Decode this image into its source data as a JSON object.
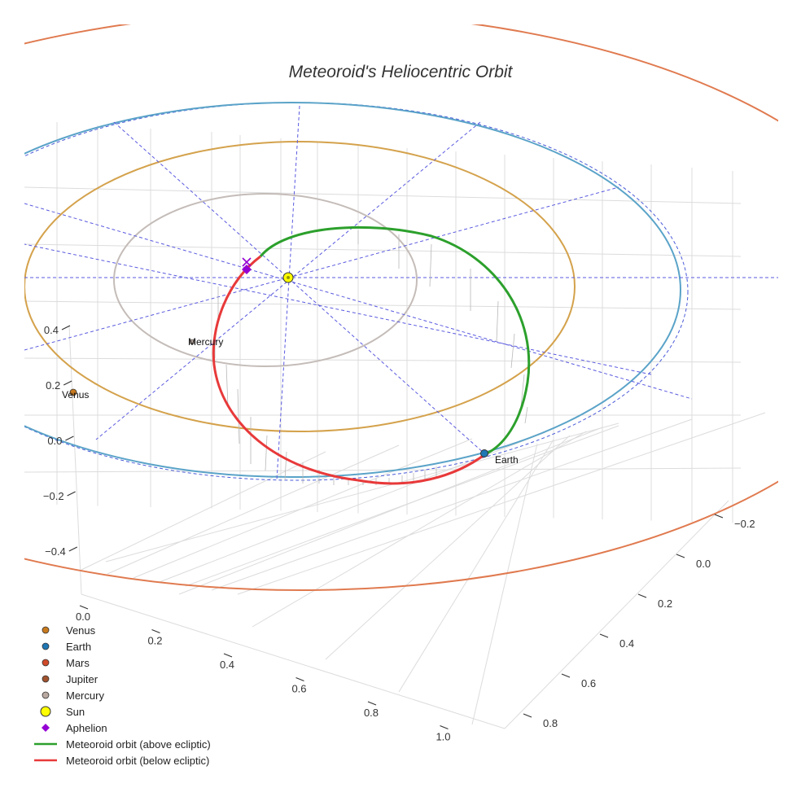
{
  "chart_data": {
    "type": "line",
    "title": "Meteoroid's Heliocentric Orbit",
    "axes": {
      "x_ticks": [
        "0.0",
        "0.2",
        "0.4",
        "0.6",
        "0.8",
        "1.0"
      ],
      "y_ticks": [
        "−0.2",
        "0.0",
        "0.2",
        "0.4",
        "0.6",
        "0.8"
      ],
      "z_ticks": [
        "0.4",
        "0.2",
        "0.0",
        "−0.2",
        "−0.4"
      ],
      "grid": true
    },
    "planet_orbits": [
      {
        "name": "Mercury",
        "semi_major_axis_au": 0.387,
        "color": "#c4bcb8"
      },
      {
        "name": "Venus",
        "semi_major_axis_au": 0.723,
        "color": "#d4a24c"
      },
      {
        "name": "Earth",
        "semi_major_axis_au": 1.0,
        "color": "#5aa3c8"
      },
      {
        "name": "Mars",
        "semi_major_axis_au": 1.524,
        "color": "#e07a4f"
      }
    ],
    "series": [
      {
        "name": "Meteoroid orbit (above ecliptic)",
        "color": "#2ca02c"
      },
      {
        "name": "Meteoroid orbit (below ecliptic)",
        "color": "#e8393a"
      }
    ],
    "labels": {
      "mercury": "Mercury",
      "venus": "Venus",
      "earth": "Earth"
    },
    "legend": {
      "position": "bottom-left",
      "entries": [
        {
          "label": "Venus",
          "marker": "circle",
          "color": "#c87a1e"
        },
        {
          "label": "Earth",
          "marker": "circle",
          "color": "#1f77b4"
        },
        {
          "label": "Mars",
          "marker": "circle",
          "color": "#d04b2a"
        },
        {
          "label": "Jupiter",
          "marker": "circle",
          "color": "#a0522d"
        },
        {
          "label": "Mercury",
          "marker": "circle",
          "color": "#b8a8a0"
        },
        {
          "label": "Sun",
          "marker": "sun",
          "color": "#ffff00"
        },
        {
          "label": "Aphelion",
          "marker": "diamond",
          "color": "#9400d3"
        },
        {
          "label": "Meteoroid orbit (above ecliptic)",
          "marker": "line",
          "color": "#2ca02c"
        },
        {
          "label": "Meteoroid orbit (below ecliptic)",
          "marker": "line",
          "color": "#e8393a"
        }
      ]
    }
  }
}
